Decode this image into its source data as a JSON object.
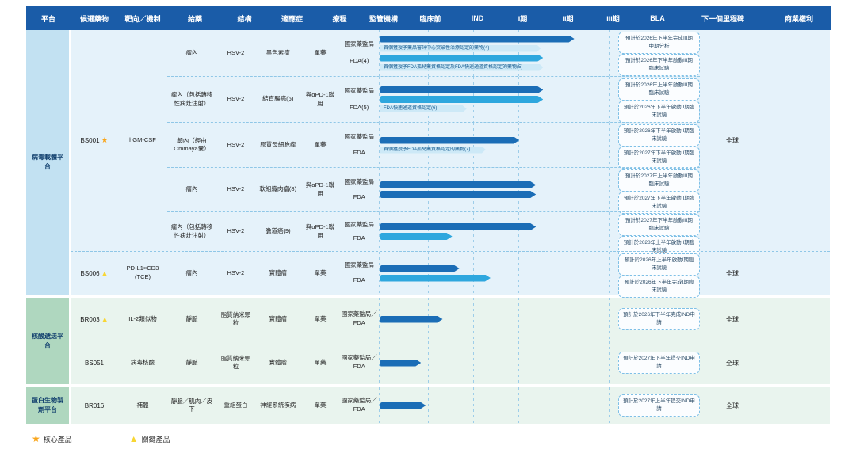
{
  "header": {
    "platform": "平台",
    "candidate": "候選藥物",
    "target": "靶向／機制",
    "route": "給藥",
    "structure": "結構",
    "indication": "適應症",
    "regimen": "療程",
    "agency": "監管機構",
    "stages": [
      "臨床前",
      "IND",
      "I期",
      "II期",
      "III期",
      "BLA"
    ],
    "milestone": "下一個里程碑",
    "commercial": "商業權利"
  },
  "groups": [
    {
      "platform": "病毒載體平台",
      "candidates": [
        {
          "name": "BS001",
          "marker": "★",
          "target": "hGM-CSF",
          "commercial": "全球",
          "programs": [
            {
              "route": "瘤內",
              "structure": "HSV-2",
              "indication": "黑色素瘤",
              "regimen": "單藥",
              "agency1": "國家藥監局",
              "agency2": "FDA(4)",
              "bars": [
                {
                  "w": "81%"
                },
                {
                  "w": "68%"
                }
              ],
              "notes": [
                {
                  "text": "首個獲授予藥品審評中心突破性治療認定的藥物(4)",
                  "w": "67%"
                },
                {
                  "text": "首個獲授予FDA孤兒藥資格認定及FDA快速通道資格認定的藥物(5)",
                  "w": "68%"
                }
              ],
              "milestones": [
                "預計於2026年下半年完成III期中期分析",
                "預計於2026年下半年啟動III期臨床試驗"
              ]
            },
            {
              "route": "瘤內（包括轉移性病灶注射）",
              "structure": "HSV-2",
              "indication": "結直腸癌(6)",
              "regimen": "與αPD-1聯用",
              "agency1": "國家藥監局",
              "agency2": "FDA(5)",
              "bars": [
                {
                  "w": "68%"
                },
                {
                  "w": "68%"
                }
              ],
              "notes": [
                {
                  "text": "FDA快速通道資格認定(6)",
                  "w": "36%"
                }
              ],
              "milestones": [
                "預計於2026年上半年啟動III期臨床試驗",
                "預計於2026年下半年啟動II期臨床試驗"
              ]
            },
            {
              "route": "顱內（經由Ommaya囊）",
              "structure": "HSV-2",
              "indication": "膠質母細胞瘤",
              "regimen": "單藥",
              "agency1": "國家藥監局",
              "agency2": "FDA",
              "bars": [
                {
                  "w": "58%"
                }
              ],
              "notes": [
                {
                  "text": "首個獲授予FDA孤兒藥資格認定的藥物(7)",
                  "w": "44%"
                }
              ],
              "milestones": [
                "預計於2026年下半年啟動II期臨床試驗",
                "預計於2027年下半年啟動II期臨床試驗"
              ]
            },
            {
              "route": "瘤內",
              "structure": "HSV-2",
              "indication": "軟組織肉瘤(8)",
              "regimen": "與αPD-1聯用",
              "agency1": "國家藥監局",
              "agency2": "FDA",
              "bars": [
                {
                  "w": "65%"
                },
                {
                  "w": "65%"
                }
              ],
              "notes": [],
              "milestones": [
                "預計於2027年上半年啟動III期臨床試驗",
                "預計於2027年下半年啟動II期臨床試驗"
              ]
            },
            {
              "route": "瘤內（包括轉移性病灶注射）",
              "structure": "HSV-2",
              "indication": "膽道癌(9)",
              "regimen": "與αPD-1聯用",
              "agency1": "國家藥監局",
              "agency2": "FDA",
              "bars": [
                {
                  "w": "65%"
                },
                {
                  "w": "30%"
                }
              ],
              "notes": [],
              "milestones": [
                "預計於2027年下半年啟動III期臨床試驗",
                "預計於2028年上半年啟動II期臨床試驗"
              ]
            }
          ]
        },
        {
          "name": "BS006",
          "marker": "▲",
          "target": "PD-L1×CD3 (TCE)",
          "commercial": "全球",
          "programs": [
            {
              "route": "瘤內",
              "structure": "HSV-2",
              "indication": "實體瘤",
              "regimen": "單藥",
              "agency1": "國家藥監局",
              "agency2": "FDA",
              "bars": [
                {
                  "w": "33%"
                },
                {
                  "w": "46%"
                }
              ],
              "notes": [],
              "milestones": [
                "預計於2026年上半年啟動I期臨床試驗",
                "預計於2026年下半年完成I期臨床試驗"
              ]
            }
          ]
        }
      ]
    },
    {
      "platform": "核酸遞送平台",
      "candidates": [
        {
          "name": "BR003",
          "marker": "▲",
          "target": "IL-2類似物",
          "commercial": "全球",
          "programs": [
            {
              "route": "靜脈",
              "structure": "脂質納米顆粒",
              "indication": "實體瘤",
              "regimen": "單藥",
              "agency1": "國家藥監局／",
              "agency2": "FDA",
              "bars": [
                {
                  "w": "26%"
                }
              ],
              "notes": [],
              "milestones": [
                "預計於2026年下半年完成IND申請"
              ]
            }
          ]
        },
        {
          "name": "BS051",
          "marker": "",
          "target": "病毒核酸",
          "commercial": "全球",
          "programs": [
            {
              "route": "靜脈",
              "structure": "脂質納米顆粒",
              "indication": "實體瘤",
              "regimen": "單藥",
              "agency1": "國家藥監局／",
              "agency2": "FDA",
              "bars": [
                {
                  "w": "17%"
                }
              ],
              "notes": [],
              "milestones": [
                "預計於2027年下半年提交IND申請"
              ]
            }
          ]
        }
      ]
    },
    {
      "platform": "蛋白生物製劑平台",
      "candidates": [
        {
          "name": "BR016",
          "marker": "",
          "target": "補體",
          "commercial": "全球",
          "programs": [
            {
              "route": "靜脈／肌肉／皮下",
              "structure": "重組蛋白",
              "indication": "神經系統疾病",
              "regimen": "單藥",
              "agency1": "國家藥監局／",
              "agency2": "FDA",
              "bars": [
                {
                  "w": "19%"
                }
              ],
              "notes": [],
              "milestones": [
                "預計於2027年上半年提交IND申請"
              ]
            }
          ]
        }
      ]
    }
  ],
  "legend": {
    "core_symbol": "★",
    "core_label": "核心產品",
    "key_symbol": "▲",
    "key_label": "關鍵產品"
  },
  "colors": {
    "header_bg": "#1a5ca8",
    "bar_dark": "#1b6db6",
    "bar_light": "#2ea7de",
    "note_bg": "#cde9f7",
    "platform_blue": "#c2e1f2",
    "row_blue": "#e5f2fa",
    "platform_green": "#afd7bf",
    "row_green": "#e9f4ee",
    "marker_star": "#f9a51a",
    "marker_triangle": "#f8d633"
  },
  "chart_data": {
    "type": "bar",
    "stages": [
      "臨床前",
      "IND",
      "I期",
      "II期",
      "III期",
      "BLA"
    ],
    "bars": [
      {
        "row": "BS001 黑色素瘤 國家藥監局",
        "reached": "III期"
      },
      {
        "row": "BS001 黑色素瘤 FDA",
        "reached": "II期"
      },
      {
        "row": "BS001 結直腸癌 國家藥監局",
        "reached": "II期"
      },
      {
        "row": "BS001 結直腸癌 FDA",
        "reached": "II期"
      },
      {
        "row": "BS001 膠質母細胞瘤 國家藥監局",
        "reached": "II期"
      },
      {
        "row": "BS001 軟組織肉瘤 國家藥監局",
        "reached": "II期"
      },
      {
        "row": "BS001 軟組織肉瘤 FDA",
        "reached": "II期"
      },
      {
        "row": "BS001 膽道癌 國家藥監局",
        "reached": "II期"
      },
      {
        "row": "BS001 膽道癌 FDA",
        "reached": "IND"
      },
      {
        "row": "BS006 實體瘤 國家藥監局",
        "reached": "IND"
      },
      {
        "row": "BS006 實體瘤 FDA",
        "reached": "I期"
      },
      {
        "row": "BR003 實體瘤",
        "reached": "IND"
      },
      {
        "row": "BS051 實體瘤",
        "reached": "臨床前"
      },
      {
        "row": "BR016 神經系統疾病",
        "reached": "IND"
      }
    ]
  }
}
